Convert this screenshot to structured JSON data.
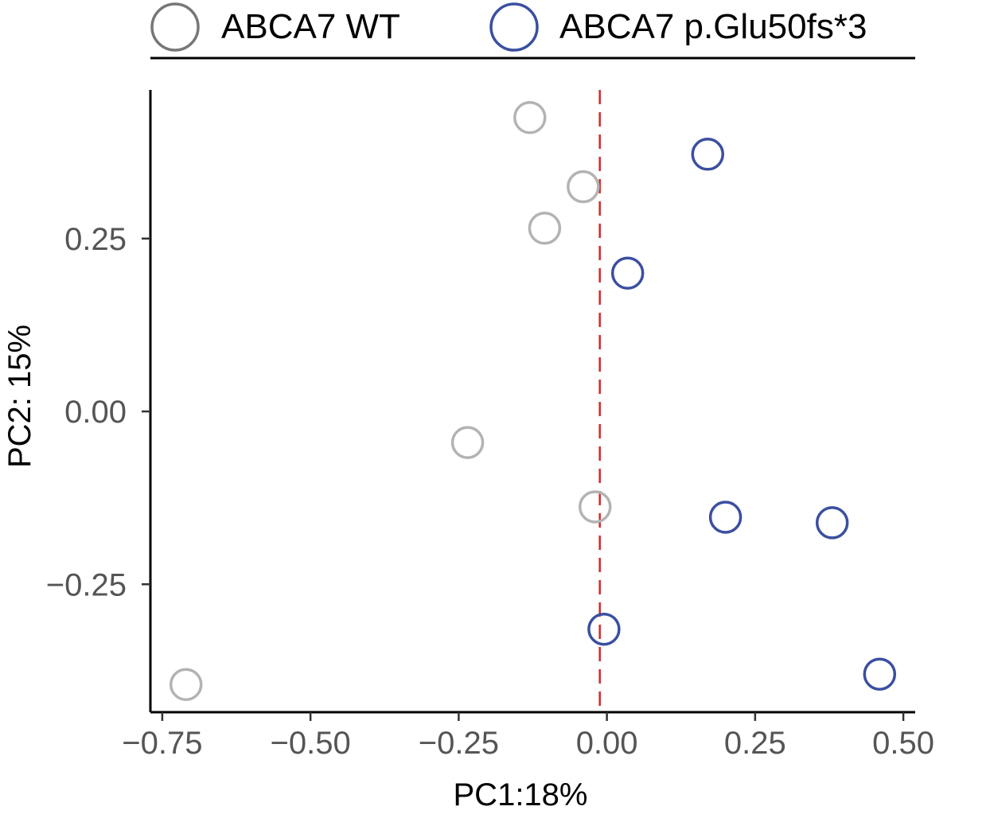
{
  "chart_data": {
    "type": "scatter",
    "xlabel": "PC1:18%",
    "ylabel": "PC2: 15%",
    "xlim": [
      -0.77,
      0.52
    ],
    "ylim": [
      -0.435,
      0.465
    ],
    "x_ticks": [
      -0.75,
      -0.5,
      -0.25,
      0.0,
      0.25,
      0.5
    ],
    "x_tick_labels": [
      "−0.75",
      "−0.50",
      "−0.25",
      "0.00",
      "0.25",
      "0.50"
    ],
    "y_ticks": [
      0.25,
      0.0,
      -0.25
    ],
    "y_tick_labels": [
      "0.25",
      "0.00",
      "−0.25"
    ],
    "grid": false,
    "legend_position": "top",
    "reference_line": {
      "x": -0.012,
      "color": "#d62728",
      "style": "dashed"
    },
    "series": [
      {
        "name": "ABCA7 WT",
        "color": "#b3b3b3",
        "legend_color": "#777777",
        "points": [
          {
            "x": -0.13,
            "y": 0.425
          },
          {
            "x": -0.04,
            "y": 0.325
          },
          {
            "x": -0.105,
            "y": 0.265
          },
          {
            "x": -0.235,
            "y": -0.045
          },
          {
            "x": -0.02,
            "y": -0.138
          },
          {
            "x": -0.71,
            "y": -0.395
          }
        ]
      },
      {
        "name": "ABCA7 p.Glu50fs*3",
        "color": "#3b4fa0",
        "legend_color": "#3b4fa0",
        "points": [
          {
            "x": 0.17,
            "y": 0.372
          },
          {
            "x": 0.035,
            "y": 0.2
          },
          {
            "x": 0.2,
            "y": -0.153
          },
          {
            "x": 0.38,
            "y": -0.161
          },
          {
            "x": -0.005,
            "y": -0.315
          },
          {
            "x": 0.46,
            "y": -0.38
          }
        ]
      }
    ]
  }
}
